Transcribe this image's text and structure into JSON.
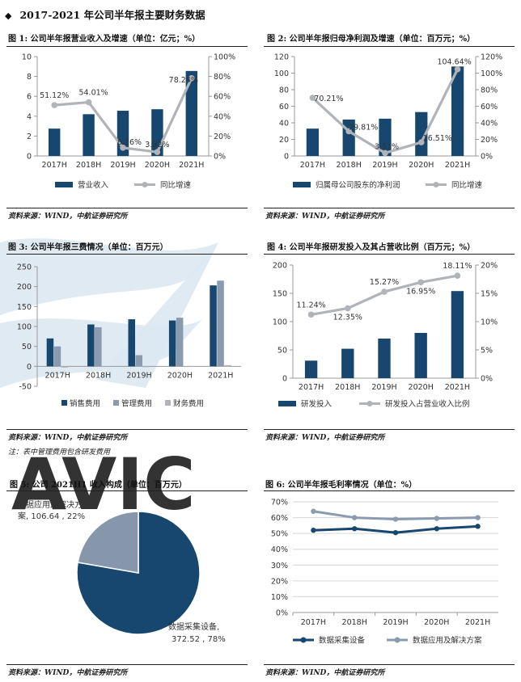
{
  "section_header": {
    "diamond": "◆",
    "title": "2017-2021 年公司半年报主要财务数据"
  },
  "watermark": {
    "text": "AVIC",
    "color": "#dbe7f1"
  },
  "colors": {
    "navy": "#17466e",
    "gray": "#b0b3b8",
    "slate": "#8a9bb0",
    "pie_light": "#8797ab"
  },
  "figures": [
    {
      "title": "图 1: 公司半年报营业收入及增速（单位：亿元；%）",
      "source": "资料来源：WIND，中航证券研究所"
    },
    {
      "title": "图 2: 公司半年报归母净利润及增速（单位：百万元；%）",
      "source": "资料来源：WIND，中航证券研究所"
    },
    {
      "title": "图 3: 公司半年报三费情况（单位：百万元）",
      "source": "资料来源：WIND，中航证券研究所",
      "note": "注：表中管理费用包含研发费用"
    },
    {
      "title": "图 4: 公司半年报研发投入及其占营收比例（百万元；%）",
      "source": "资料来源：WIND，中航证券研究所"
    },
    {
      "title": "图 5: 公司 2021H1 收入构成（单位：百万元）",
      "source": "资料来源：WIND，中航证券研究所"
    },
    {
      "title": "图 6: 公司半年报毛利率情况（单位：%）",
      "source": "资料来源：WIND，中航证券研究所"
    }
  ],
  "chart_data": [
    {
      "type": "bar",
      "categories": [
        "2017H",
        "2018H",
        "2019H",
        "2020H",
        "2021H"
      ],
      "series": [
        {
          "name": "营业收入",
          "kind": "bar",
          "axis": "left",
          "values": [
            2.75,
            4.2,
            4.55,
            4.7,
            8.55
          ]
        },
        {
          "name": "同比增速",
          "kind": "line",
          "axis": "right",
          "values": [
            51.12,
            54.01,
            8.26,
            3.92,
            78.24
          ],
          "labels": [
            "51.12%",
            "54.01%",
            "8.26%",
            "3.92%",
            "78.24%"
          ]
        }
      ],
      "y_left": {
        "min": 0,
        "max": 10,
        "step": 2,
        "ticks": [
          "0",
          "2",
          "4",
          "6",
          "8",
          "10"
        ]
      },
      "y_right": {
        "min": 0,
        "max": 100,
        "step": 20,
        "ticks": [
          "0%",
          "20%",
          "40%",
          "60%",
          "80%",
          "100%"
        ]
      },
      "grid": false,
      "legend": "bottom"
    },
    {
      "type": "bar",
      "categories": [
        "2017H",
        "2018H",
        "2019H",
        "2020H",
        "2021H"
      ],
      "series": [
        {
          "name": "归属母公司股东的净利润",
          "kind": "bar",
          "axis": "left",
          "values": [
            33,
            44,
            45,
            53,
            108
          ]
        },
        {
          "name": "同比增速",
          "kind": "line",
          "axis": "right",
          "values": [
            70.21,
            29.81,
            3.51,
            16.51,
            104.64
          ],
          "labels": [
            "70.21%",
            "29.81%",
            "3.51%",
            "16.51%",
            "104.64%"
          ]
        }
      ],
      "y_left": {
        "min": 0,
        "max": 120,
        "step": 20,
        "ticks": [
          "0",
          "20",
          "40",
          "60",
          "80",
          "100",
          "120"
        ]
      },
      "y_right": {
        "min": 0,
        "max": 120,
        "step": 20,
        "ticks": [
          "0%",
          "20%",
          "40%",
          "60%",
          "80%",
          "100%",
          "120%"
        ]
      },
      "grid": false,
      "legend": "bottom"
    },
    {
      "type": "bar",
      "categories": [
        "2017H",
        "2018H",
        "2019H",
        "2020H",
        "2021H"
      ],
      "series": [
        {
          "name": "销售费用",
          "values": [
            70,
            105,
            118,
            115,
            203
          ]
        },
        {
          "name": "管理费用",
          "values": [
            50,
            98,
            28,
            122,
            215
          ]
        },
        {
          "name": "财务费用",
          "values": [
            -3,
            -1,
            -2,
            -1,
            3
          ]
        }
      ],
      "y_left": {
        "min": -50,
        "max": 250,
        "step": 50,
        "ticks": [
          "-50",
          "0",
          "50",
          "100",
          "150",
          "200",
          "250"
        ]
      },
      "grid": false,
      "legend": "bottom"
    },
    {
      "type": "bar",
      "categories": [
        "2017H",
        "2018H",
        "2019H",
        "2020H",
        "2021H"
      ],
      "series": [
        {
          "name": "研发投入",
          "kind": "bar",
          "axis": "left",
          "values": [
            31,
            52,
            70,
            80,
            154
          ]
        },
        {
          "name": "研发投入占营业收入比例",
          "kind": "line",
          "axis": "right",
          "values": [
            11.24,
            12.35,
            15.27,
            16.95,
            18.11
          ],
          "labels": [
            "11.24%",
            "12.35%",
            "15.27%",
            "16.95%",
            "18.11%"
          ]
        }
      ],
      "y_left": {
        "min": 0,
        "max": 200,
        "step": 50,
        "ticks": [
          "0",
          "50",
          "100",
          "150",
          "200"
        ]
      },
      "y_right": {
        "min": 0,
        "max": 20,
        "step": 5,
        "ticks": [
          "0%",
          "5%",
          "10%",
          "15%",
          "20%"
        ]
      },
      "grid": false,
      "legend": "bottom"
    },
    {
      "type": "pie",
      "slices": [
        {
          "name": "数据采集设备",
          "value": 372.52,
          "percent": 78,
          "label_lines": [
            "数据采集设备,",
            "372.52 , 78%"
          ]
        },
        {
          "name": "数据应用及解决方案",
          "value": 106.64,
          "percent": 22,
          "label_lines": [
            "数据应用及解决方",
            "案, 106.64 , 22%"
          ]
        }
      ]
    },
    {
      "type": "line",
      "categories": [
        "2017H",
        "2018H",
        "2019H",
        "2020H",
        "2021H"
      ],
      "series": [
        {
          "name": "数据采集设备",
          "values": [
            52,
            53,
            50.5,
            53,
            54.5
          ]
        },
        {
          "name": "数据应用及解决方案",
          "values": [
            64,
            60,
            59,
            59.5,
            60
          ]
        }
      ],
      "y_left": {
        "min": 0,
        "max": 70,
        "step": 10,
        "ticks": [
          "0%",
          "10%",
          "20%",
          "30%",
          "40%",
          "50%",
          "60%",
          "70%"
        ]
      },
      "grid": true,
      "legend": "bottom"
    }
  ]
}
